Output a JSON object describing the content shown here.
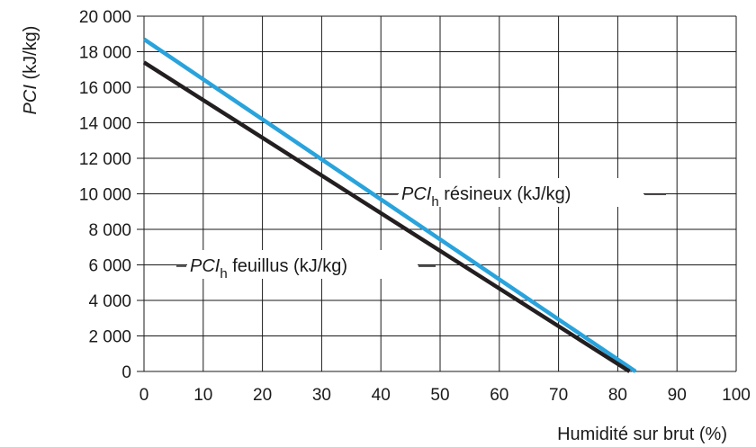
{
  "chart_data": {
    "type": "line",
    "xlabel": "Humidité sur brut (%)",
    "ylabel_italic": "PCI",
    "ylabel_unit": " (kJ/kg)",
    "xlim": [
      0,
      100
    ],
    "ylim": [
      0,
      20000
    ],
    "x_ticks": [
      0,
      10,
      20,
      30,
      40,
      50,
      60,
      70,
      80,
      90,
      100
    ],
    "x_tick_labels": [
      "0",
      "10",
      "20",
      "30",
      "40",
      "50",
      "60",
      "70",
      "80",
      "90",
      "100"
    ],
    "y_ticks": [
      0,
      2000,
      4000,
      6000,
      8000,
      10000,
      12000,
      14000,
      16000,
      18000,
      20000
    ],
    "y_tick_labels": [
      "0",
      "2 000",
      "4 000",
      "6 000",
      "8 000",
      "10 000",
      "12 000",
      "14 000",
      "16 000",
      "18 000",
      "20 000"
    ],
    "grid": true,
    "series": [
      {
        "name": "PCIh résineux (kJ/kg)",
        "label_italic": "PCI",
        "label_sub": "h",
        "label_rest": " résineux (kJ/kg)",
        "color": "#29a3dc",
        "x": [
          0,
          83
        ],
        "y": [
          18700,
          0
        ]
      },
      {
        "name": "PCIh feuillus (kJ/kg)",
        "label_italic": "PCI",
        "label_sub": "h",
        "label_rest": " feuillus (kJ/kg)",
        "color": "#231f20",
        "x": [
          0,
          82
        ],
        "y": [
          17400,
          0
        ]
      }
    ]
  }
}
